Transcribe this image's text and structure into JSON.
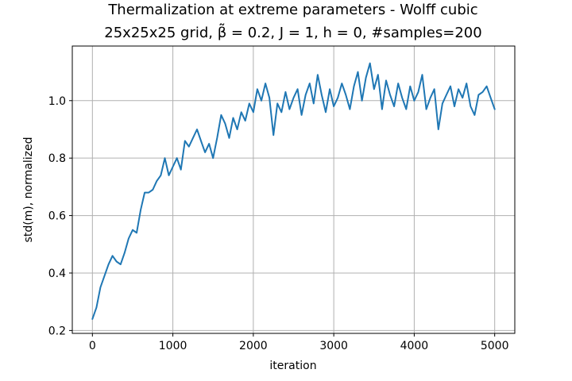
{
  "chart_data": {
    "type": "line",
    "title": "Thermalization at extreme parameters - Wolff cubic",
    "subtitle": "25x25x25 grid, β̃ = 0.2, J = 1, h = 0, #samples=200",
    "xlabel": "iteration",
    "ylabel": "std(m), normalized",
    "xlim": [
      -250,
      5250
    ],
    "ylim": [
      0.19,
      1.19
    ],
    "x_ticks": [
      0,
      1000,
      2000,
      3000,
      4000,
      5000
    ],
    "y_ticks": [
      0.2,
      0.4,
      0.6,
      0.8,
      1.0
    ],
    "x_tick_labels": [
      "0",
      "1000",
      "2000",
      "3000",
      "4000",
      "5000"
    ],
    "y_tick_labels": [
      "0.2",
      "0.4",
      "0.6",
      "0.8",
      "1.0"
    ],
    "grid": true,
    "color": "#1f77b4",
    "series": [
      {
        "x": [
          0,
          50,
          100,
          150,
          200,
          250,
          300,
          350,
          400,
          450,
          500,
          550,
          600,
          650,
          700,
          750,
          800,
          850,
          900,
          950,
          1000,
          1050,
          1100,
          1150,
          1200,
          1250,
          1300,
          1350,
          1400,
          1450,
          1500,
          1550,
          1600,
          1650,
          1700,
          1750,
          1800,
          1850,
          1900,
          1950,
          2000,
          2050,
          2100,
          2150,
          2200,
          2250,
          2300,
          2350,
          2400,
          2450,
          2500,
          2550,
          2600,
          2650,
          2700,
          2750,
          2800,
          2850,
          2900,
          2950,
          3000,
          3050,
          3100,
          3150,
          3200,
          3250,
          3300,
          3350,
          3400,
          3450,
          3500,
          3550,
          3600,
          3650,
          3700,
          3750,
          3800,
          3850,
          3900,
          3950,
          4000,
          4050,
          4100,
          4150,
          4200,
          4250,
          4300,
          4350,
          4400,
          4450,
          4500,
          4550,
          4600,
          4650,
          4700,
          4750,
          4800,
          4850,
          4900,
          4950,
          5000
        ],
        "y": [
          0.24,
          0.28,
          0.35,
          0.39,
          0.43,
          0.46,
          0.44,
          0.43,
          0.47,
          0.52,
          0.55,
          0.54,
          0.62,
          0.68,
          0.68,
          0.69,
          0.72,
          0.74,
          0.8,
          0.74,
          0.77,
          0.8,
          0.76,
          0.86,
          0.84,
          0.87,
          0.9,
          0.86,
          0.82,
          0.85,
          0.8,
          0.87,
          0.95,
          0.92,
          0.87,
          0.94,
          0.9,
          0.96,
          0.93,
          0.99,
          0.96,
          1.04,
          1.0,
          1.06,
          1.01,
          0.88,
          0.99,
          0.96,
          1.03,
          0.97,
          1.01,
          1.04,
          0.95,
          1.02,
          1.06,
          0.99,
          1.09,
          1.02,
          0.96,
          1.04,
          0.98,
          1.01,
          1.06,
          1.02,
          0.97,
          1.05,
          1.1,
          1.0,
          1.08,
          1.13,
          1.04,
          1.09,
          0.97,
          1.07,
          1.02,
          0.98,
          1.06,
          1.01,
          0.97,
          1.05,
          1.0,
          1.03,
          1.09,
          0.97,
          1.01,
          1.04,
          0.9,
          0.99,
          1.02,
          1.05,
          0.98,
          1.04,
          1.01,
          1.06,
          0.98,
          0.95,
          1.02,
          1.03,
          1.05,
          1.01,
          0.97
        ]
      }
    ]
  }
}
